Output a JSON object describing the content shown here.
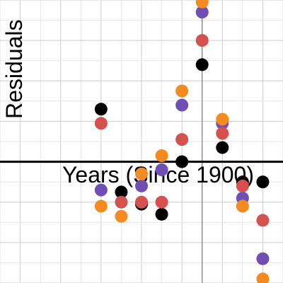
{
  "chart_data": {
    "type": "scatter",
    "xlabel": "Years (Since 1900)",
    "ylabel": "Residuals",
    "grid": true,
    "x_window": [
      -1,
      13
    ],
    "y_window": [
      -3.0,
      4.0
    ],
    "colors": {
      "background": "#ffffff",
      "minor_grid": "#e6e6e6",
      "major_grid": "#cccccc",
      "axis": "#000000",
      "vertical_axis": "#777777"
    },
    "series": [
      {
        "color": "#000000",
        "points": [
          [
            4,
            1.3
          ],
          [
            5,
            -0.75
          ],
          [
            6,
            -1.05
          ],
          [
            7,
            -1.3
          ],
          [
            8,
            0.0
          ],
          [
            9,
            2.4
          ],
          [
            10,
            0.35
          ],
          [
            11,
            -0.5
          ],
          [
            12,
            -0.5
          ]
        ]
      },
      {
        "color": "#6f4fb4",
        "points": [
          [
            4,
            -0.7
          ],
          [
            6,
            -0.6
          ],
          [
            7,
            -0.2
          ],
          [
            8,
            1.4
          ],
          [
            9,
            3.7
          ],
          [
            10,
            0.95
          ],
          [
            11,
            -0.9
          ],
          [
            12,
            -2.4
          ]
        ]
      },
      {
        "color": "#d6504e",
        "points": [
          [
            4,
            0.95
          ],
          [
            5,
            -1.0
          ],
          [
            6,
            -1.0
          ],
          [
            7,
            -1.0
          ],
          [
            8,
            0.55
          ],
          [
            9,
            3.0
          ],
          [
            10,
            0.7
          ],
          [
            11,
            -0.6
          ],
          [
            12,
            -1.45
          ]
        ]
      },
      {
        "color": "#f58a21",
        "points": [
          [
            4,
            -1.1
          ],
          [
            5,
            -1.35
          ],
          [
            6,
            -0.3
          ],
          [
            7,
            0.15
          ],
          [
            8,
            1.75
          ],
          [
            9,
            3.95
          ],
          [
            10,
            1.05
          ],
          [
            11,
            -1.1
          ],
          [
            12,
            -2.9
          ]
        ]
      }
    ]
  }
}
